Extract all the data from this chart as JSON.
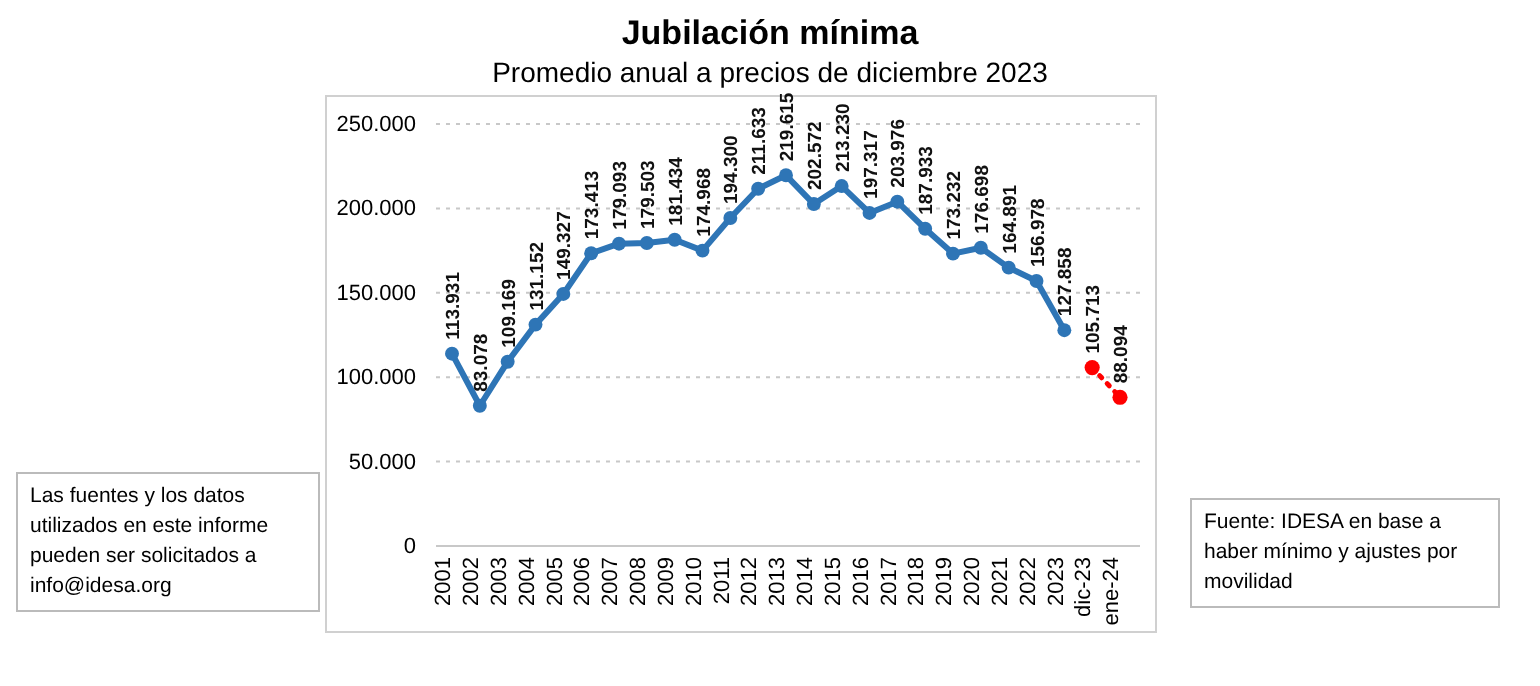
{
  "chart_data": {
    "type": "line",
    "title": "Jubilación mínima",
    "subtitle": "Promedio anual a precios de diciembre 2023",
    "categories": [
      "2001",
      "2002",
      "2003",
      "2004",
      "2005",
      "2006",
      "2007",
      "2008",
      "2009",
      "2010",
      "2011",
      "2012",
      "2013",
      "2014",
      "2015",
      "2016",
      "2017",
      "2018",
      "2019",
      "2020",
      "2021",
      "2022",
      "2023",
      "dic-23",
      "ene-24"
    ],
    "series": [
      {
        "color": "#2e75b6",
        "line_style": "solid",
        "values": [
          113931,
          83078,
          109169,
          131152,
          149327,
          173413,
          179093,
          179503,
          181434,
          174968,
          194300,
          211633,
          219615,
          202572,
          213230,
          197317,
          203976,
          187933,
          173232,
          176698,
          164891,
          156978,
          127858,
          null,
          null
        ],
        "value_labels": [
          "113.931",
          "83.078",
          "109.169",
          "131.152",
          "149.327",
          "173.413",
          "179.093",
          "179.503",
          "181.434",
          "174.968",
          "194.300",
          "211.633",
          "219.615",
          "202.572",
          "213.230",
          "197.317",
          "203.976",
          "187.933",
          "173.232",
          "176.698",
          "164.891",
          "156.978",
          "127.858",
          null,
          null
        ]
      },
      {
        "color": "#ff0000",
        "line_style": "dotted",
        "values": [
          null,
          null,
          null,
          null,
          null,
          null,
          null,
          null,
          null,
          null,
          null,
          null,
          null,
          null,
          null,
          null,
          null,
          null,
          null,
          null,
          null,
          null,
          null,
          105713,
          88094
        ],
        "value_labels": [
          null,
          null,
          null,
          null,
          null,
          null,
          null,
          null,
          null,
          null,
          null,
          null,
          null,
          null,
          null,
          null,
          null,
          null,
          null,
          null,
          null,
          null,
          null,
          "105.713",
          "88.094"
        ]
      }
    ],
    "ylim": [
      0,
      250000
    ],
    "yticks": [
      {
        "value": 0,
        "label": "0"
      },
      {
        "value": 50000,
        "label": "50.000"
      },
      {
        "value": 100000,
        "label": "100.000"
      },
      {
        "value": 150000,
        "label": "150.000"
      },
      {
        "value": 200000,
        "label": "200.000"
      },
      {
        "value": 250000,
        "label": "250.000"
      }
    ],
    "grid": "y",
    "marker": "circle",
    "annotations": [
      "Las fuentes y los datos utilizados en este informe pueden ser solicitados a info@idesa.org",
      "Fuente: IDESA en base a haber mínimo y ajustes por movilidad"
    ]
  }
}
